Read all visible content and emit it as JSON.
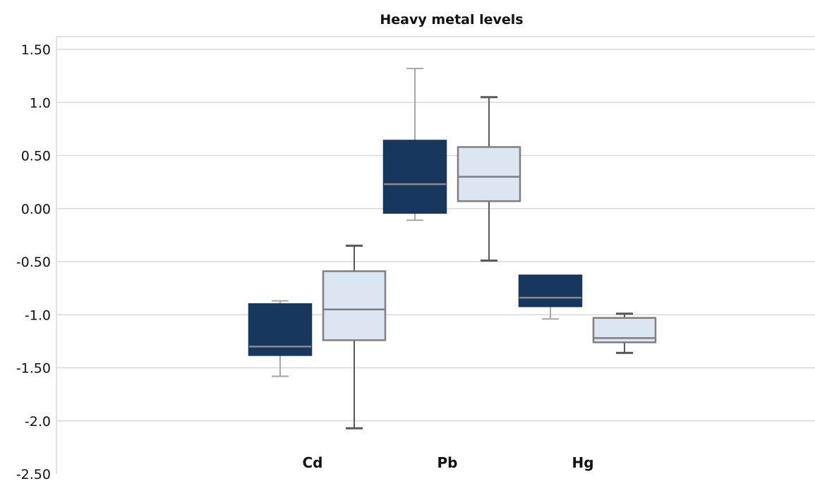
{
  "chart_data": {
    "type": "boxplot",
    "title": "Heavy metal levels",
    "xlabel": "",
    "ylabel": "",
    "ylim": [
      -2.5,
      1.5
    ],
    "yticks": [
      1.5,
      1.0,
      0.5,
      0.0,
      -0.5,
      -1.0,
      -1.5,
      -2.0,
      -2.5
    ],
    "ytick_labels": [
      "1.50",
      "1.0",
      "0.50",
      "0.00",
      "-0.50",
      "-1.0",
      "-1.50",
      "-2.0",
      "-2.50"
    ],
    "grid": true,
    "categories": [
      "Cd",
      "Pb",
      "Hg"
    ],
    "series": [
      {
        "color": "#17365d",
        "boxes": [
          {
            "min": -1.58,
            "q1": -1.38,
            "median": -1.3,
            "q3": -0.9,
            "max": -0.87
          },
          {
            "min": -0.11,
            "q1": -0.04,
            "median": 0.23,
            "q3": 0.64,
            "max": 1.32
          },
          {
            "min": -1.04,
            "q1": -0.92,
            "median": -0.84,
            "q3": -0.63,
            "max": -0.63
          }
        ]
      },
      {
        "color": "#dce6f2",
        "boxes": [
          {
            "min": -2.07,
            "q1": -1.24,
            "median": -0.95,
            "q3": -0.59,
            "max": -0.35
          },
          {
            "min": -0.49,
            "q1": 0.07,
            "median": 0.3,
            "q3": 0.58,
            "max": 1.05
          },
          {
            "min": -1.36,
            "q1": -1.26,
            "median": -1.22,
            "q3": -1.03,
            "max": -0.99
          }
        ]
      }
    ]
  }
}
